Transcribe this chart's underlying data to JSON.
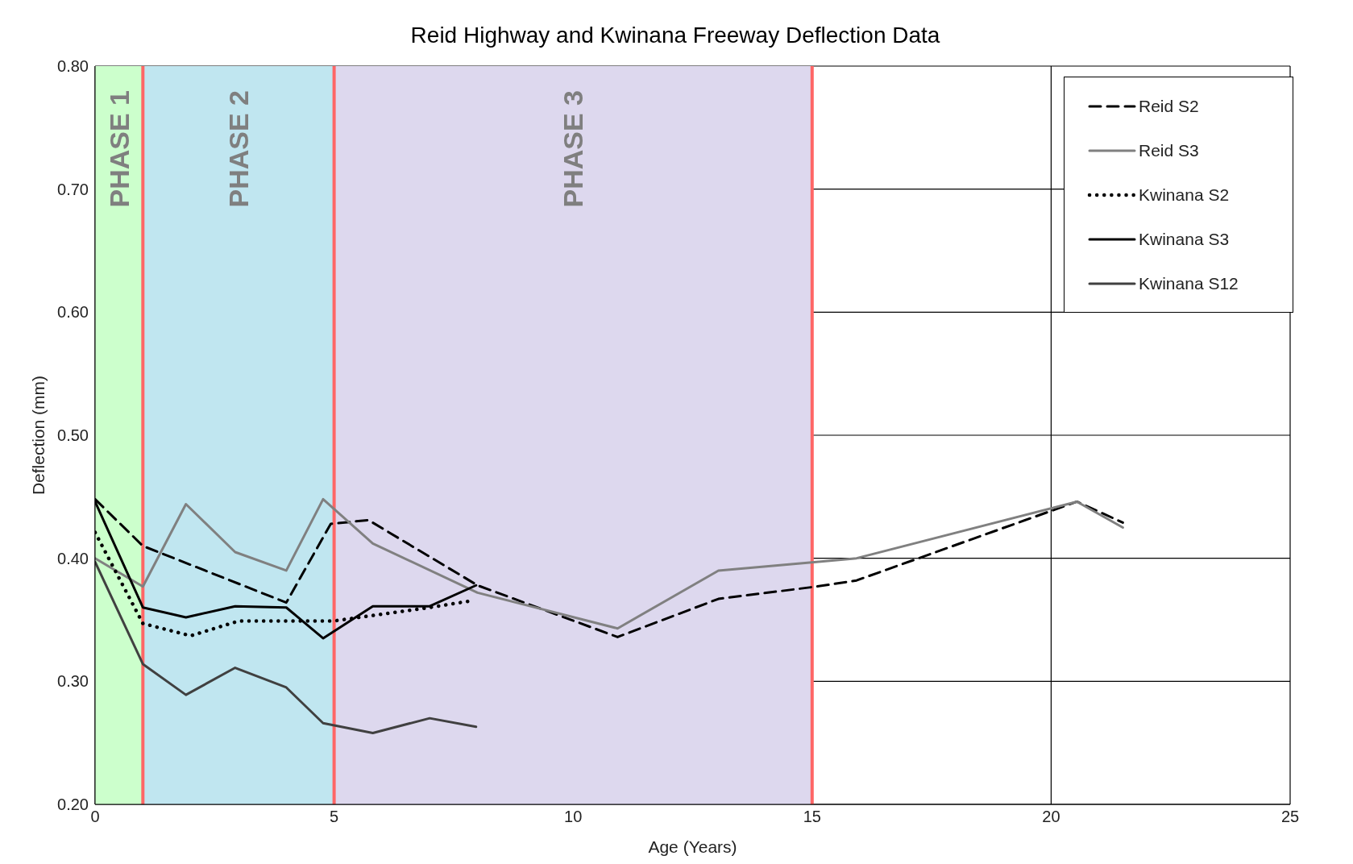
{
  "chart_data": {
    "type": "line",
    "title": "Reid Highway and Kwinana Freeway Deflection Data",
    "xlabel": "Age (Years)",
    "ylabel": "Deflection (mm)",
    "xlim": [
      0,
      25
    ],
    "xticks": [
      0,
      5,
      10,
      15,
      20,
      25
    ],
    "ylim": [
      0.2,
      0.8
    ],
    "yticks": [
      {
        "value": 0.2,
        "label": "0.20"
      },
      {
        "value": 0.3,
        "label": "0.30"
      },
      {
        "value": 0.4,
        "label": "0.40"
      },
      {
        "value": 0.5,
        "label": "0.50"
      },
      {
        "value": 0.6,
        "label": "0.60"
      },
      {
        "value": 0.7,
        "label": "0.70"
      },
      {
        "value": 0.8,
        "label": "0.80"
      }
    ],
    "grid": true,
    "legend": "top right",
    "marker": "none",
    "bands": [
      {
        "axis": "x",
        "from": 0,
        "to": 1,
        "label": "PHASE 1",
        "color": "#ccffcc"
      },
      {
        "axis": "x",
        "from": 1,
        "to": 5,
        "label": "PHASE 2",
        "color": "#c0e6f0"
      },
      {
        "axis": "x",
        "from": 5,
        "to": 15,
        "label": "PHASE 3",
        "color": "#ddd8ee"
      }
    ],
    "ref_lines": [
      {
        "axis": "x",
        "value": 1,
        "color": "#ff6666"
      },
      {
        "axis": "x",
        "value": 5,
        "color": "#ff6666"
      },
      {
        "axis": "x",
        "value": 15,
        "color": "#ff6666"
      }
    ],
    "series": [
      {
        "name": "Reid S2",
        "color": "#000000",
        "line_style": "dashed",
        "x": [
          0,
          1,
          4,
          4.93,
          5.72,
          8,
          10.93,
          13.04,
          15.09,
          15.93,
          20.54,
          21.5
        ],
        "values": [
          0.448,
          0.41,
          0.364,
          0.428,
          0.431,
          0.378,
          0.336,
          0.367,
          0.377,
          0.382,
          0.446,
          0.429
        ]
      },
      {
        "name": "Reid S3",
        "color": "#808080",
        "line_style": "solid",
        "x": [
          0,
          1,
          1.9,
          2.93,
          4,
          4.77,
          5.81,
          8,
          10.93,
          13.04,
          15.09,
          15.93,
          20.54,
          21.5
        ],
        "values": [
          0.4,
          0.377,
          0.444,
          0.405,
          0.39,
          0.448,
          0.412,
          0.372,
          0.343,
          0.39,
          0.397,
          0.4,
          0.446,
          0.425
        ]
      },
      {
        "name": "Kwinana S2",
        "color": "#000000",
        "line_style": "dotted",
        "x": [
          0,
          1,
          2,
          3,
          4,
          4.98,
          5.9,
          7,
          7.8
        ],
        "values": [
          0.421,
          0.347,
          0.337,
          0.349,
          0.349,
          0.349,
          0.354,
          0.36,
          0.365
        ]
      },
      {
        "name": "Kwinana S3",
        "color": "#000000",
        "line_style": "solid",
        "x": [
          0,
          1,
          1.9,
          2.93,
          4,
          4.77,
          5.81,
          7,
          7.97
        ],
        "values": [
          0.446,
          0.36,
          0.352,
          0.361,
          0.36,
          0.335,
          0.361,
          0.361,
          0.378
        ]
      },
      {
        "name": "Kwinana S12",
        "color": "#404040",
        "line_style": "solid",
        "x": [
          0,
          1,
          1.9,
          2.93,
          4,
          4.77,
          5.81,
          7,
          7.97
        ],
        "values": [
          0.397,
          0.314,
          0.289,
          0.311,
          0.295,
          0.266,
          0.258,
          0.27,
          0.263
        ]
      }
    ]
  }
}
